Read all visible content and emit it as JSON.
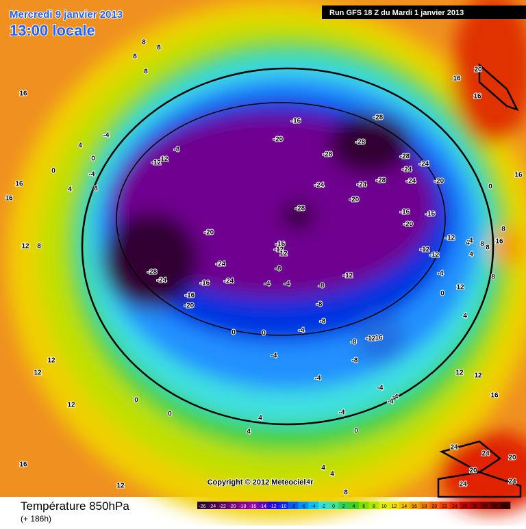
{
  "header": {
    "date": "Mercredi 9 janvier 2013",
    "time": "13:00 locale",
    "run": "Run GFS 18 Z du Mardi 1 janvier 2013"
  },
  "map": {
    "copyright": "Copyright © 2012 Meteociel.fr",
    "labels": [
      8,
      8,
      8,
      8,
      16,
      16,
      16,
      12,
      4,
      -4,
      0,
      0,
      -4,
      4,
      8,
      8,
      -8,
      -12,
      12,
      -16,
      -20,
      -28,
      -28,
      -28,
      -28,
      -24,
      -24,
      -24,
      -24,
      -28,
      -24,
      -20,
      -28,
      -20,
      -16,
      -16,
      -20,
      -12,
      -12,
      -12,
      -20,
      -16,
      -12,
      12,
      -24,
      -28,
      -24,
      -16,
      -24,
      -16,
      -20,
      -12,
      -8,
      -4,
      -4,
      -8,
      -8,
      -8,
      -8,
      -12,
      16,
      -8,
      0,
      0,
      -4,
      -4,
      -4,
      -4,
      -4,
      -4,
      -4,
      0,
      0,
      0,
      4,
      4,
      4,
      4,
      4,
      8,
      12,
      12,
      12,
      16,
      12,
      0,
      8,
      16,
      8,
      8,
      8,
      4,
      4,
      0,
      12,
      4,
      12,
      12,
      16,
      24,
      24,
      20,
      20,
      24,
      24,
      16,
      16,
      20,
      16,
      -4,
      -4
    ]
  },
  "legend": {
    "title": "Température 850hPa",
    "step": "(+ 186h)",
    "ticks": [
      -26,
      -24,
      -22,
      -20,
      -18,
      -16,
      -14,
      -12,
      -10,
      -8,
      -6,
      -4,
      -2,
      0,
      2,
      4,
      6,
      8,
      10,
      12,
      14,
      16,
      18,
      20,
      22,
      24,
      26,
      28,
      30,
      32,
      34
    ],
    "colors": [
      "#2a0030",
      "#400048",
      "#580060",
      "#700078",
      "#880090",
      "#9000b0",
      "#6000c0",
      "#2000e0",
      "#0020ff",
      "#0060ff",
      "#0090ff",
      "#00c0ff",
      "#30e0e0",
      "#40e0a0",
      "#30d060",
      "#40d020",
      "#80e000",
      "#b0e800",
      "#e0f000",
      "#f0e000",
      "#f0c000",
      "#f0a000",
      "#f08000",
      "#f06000",
      "#f04000",
      "#e02000",
      "#c00000",
      "#a00000",
      "#800000",
      "#600000",
      "#400000"
    ]
  }
}
